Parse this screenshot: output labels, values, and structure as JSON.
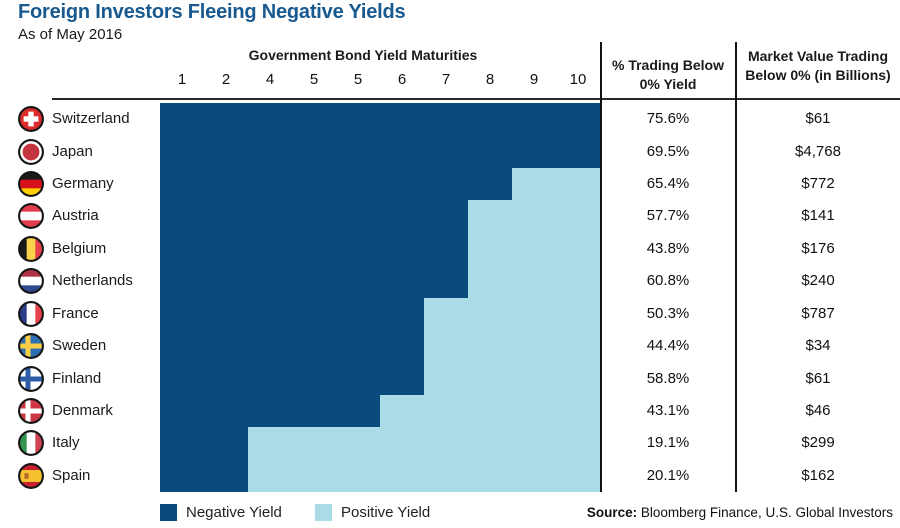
{
  "title": "Foreign Investors Fleeing Negative Yields",
  "subtitle": "As of May 2016",
  "table": {
    "maturities_header": "Government Bond Yield Maturities",
    "maturity_labels": [
      "1",
      "2",
      "4",
      "5",
      "5",
      "6",
      "7",
      "8",
      "9",
      "10"
    ],
    "col_pct_header": "% Trading Below 0% Yield",
    "col_mv_header": "Market Value Trading Below 0% (in Billions)"
  },
  "legend": {
    "negative_label": "Negative Yield",
    "positive_label": "Positive Yield"
  },
  "source": {
    "label": "Source:",
    "text": " Bloomberg Finance, U.S. Global Investors"
  },
  "colors": {
    "negative": "#0B4A7D",
    "positive": "#ACDBE8",
    "title": "#18598F"
  },
  "chart_data": {
    "type": "heatmap",
    "title": "Foreign Investors Fleeing Negative Yields",
    "subtitle": "As of May 2016",
    "x_header": "Government Bond Yield Maturities",
    "x_ticks": [
      "1",
      "2",
      "4",
      "5",
      "5",
      "6",
      "7",
      "8",
      "9",
      "10"
    ],
    "legend": [
      "Negative Yield",
      "Positive Yield"
    ],
    "legend_position": "bottom",
    "columns": [
      "Country",
      "% Trading Below 0% Yield",
      "Market Value Trading Below 0% (in Billions)"
    ],
    "rows": [
      {
        "country": "Switzerland",
        "flag": "switzerland-flag-icon",
        "negative_maturity_cells": 10,
        "pct_trading_below": "75.6%",
        "market_value_billions": "$61"
      },
      {
        "country": "Japan",
        "flag": "japan-flag-icon",
        "negative_maturity_cells": 10,
        "pct_trading_below": "69.5%",
        "market_value_billions": "$4,768"
      },
      {
        "country": "Germany",
        "flag": "germany-flag-icon",
        "negative_maturity_cells": 8,
        "pct_trading_below": "65.4%",
        "market_value_billions": "$772"
      },
      {
        "country": "Austria",
        "flag": "austria-flag-icon",
        "negative_maturity_cells": 7,
        "pct_trading_below": "57.7%",
        "market_value_billions": "$141"
      },
      {
        "country": "Belgium",
        "flag": "belgium-flag-icon",
        "negative_maturity_cells": 7,
        "pct_trading_below": "43.8%",
        "market_value_billions": "$176"
      },
      {
        "country": "Netherlands",
        "flag": "netherlands-flag-icon",
        "negative_maturity_cells": 7,
        "pct_trading_below": "60.8%",
        "market_value_billions": "$240"
      },
      {
        "country": "France",
        "flag": "france-flag-icon",
        "negative_maturity_cells": 6,
        "pct_trading_below": "50.3%",
        "market_value_billions": "$787"
      },
      {
        "country": "Sweden",
        "flag": "sweden-flag-icon",
        "negative_maturity_cells": 6,
        "pct_trading_below": "44.4%",
        "market_value_billions": "$34"
      },
      {
        "country": "Finland",
        "flag": "finland-flag-icon",
        "negative_maturity_cells": 6,
        "pct_trading_below": "58.8%",
        "market_value_billions": "$61"
      },
      {
        "country": "Denmark",
        "flag": "denmark-flag-icon",
        "negative_maturity_cells": 5,
        "pct_trading_below": "43.1%",
        "market_value_billions": "$46"
      },
      {
        "country": "Italy",
        "flag": "italy-flag-icon",
        "negative_maturity_cells": 2,
        "pct_trading_below": "19.1%",
        "market_value_billions": "$299"
      },
      {
        "country": "Spain",
        "flag": "spain-flag-icon",
        "negative_maturity_cells": 2,
        "pct_trading_below": "20.1%",
        "market_value_billions": "$162"
      }
    ]
  }
}
